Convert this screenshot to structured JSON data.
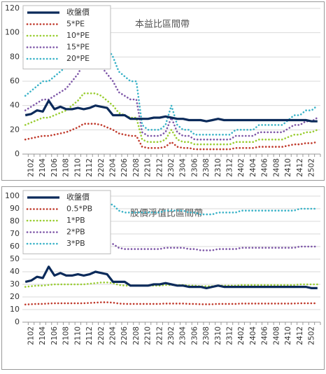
{
  "chart_data": [
    {
      "type": "line",
      "title": "本益比區間帶",
      "categories": [
        null,
        "2102",
        null,
        "2104",
        null,
        "2106",
        null,
        "2108",
        null,
        "2110",
        null,
        "2112",
        null,
        "2202",
        null,
        "2204",
        null,
        "2206",
        null,
        "2208",
        null,
        "2210",
        null,
        "2212",
        null,
        "2302",
        null,
        "2304",
        null,
        "2306",
        null,
        "2308",
        null,
        "2310",
        null,
        "2312",
        null,
        "2402",
        null,
        "2404",
        null,
        "2406",
        null,
        "2408",
        null,
        "2410",
        null,
        "2412",
        null,
        "2502",
        null
      ],
      "ylim": [
        0,
        120
      ],
      "yticks": [
        0,
        20,
        40,
        60,
        80,
        100,
        120
      ],
      "grid": true,
      "series": [
        {
          "name": "收盤價",
          "color": "#0b2a5a",
          "style": "solid",
          "values": [
            32,
            33,
            36,
            35,
            44,
            37,
            39,
            37,
            37,
            38,
            37,
            38,
            40,
            39,
            38,
            32,
            32,
            32,
            29,
            29,
            29,
            29,
            30,
            30,
            31,
            30,
            29,
            29,
            28,
            28,
            28,
            27,
            28,
            29,
            28,
            28,
            28,
            28,
            28,
            28,
            28,
            28,
            28,
            28,
            28,
            28,
            28,
            28,
            28,
            27,
            27
          ]
        },
        {
          "name": "5*PE",
          "color": "#c0392b",
          "style": "dotted",
          "values": [
            12,
            13,
            14,
            15,
            15,
            16,
            17,
            18,
            20,
            22,
            25,
            25,
            25,
            24,
            22,
            20,
            17,
            16,
            15,
            15,
            6,
            5,
            5,
            5,
            6,
            10,
            6,
            5,
            5,
            4,
            4,
            4,
            4,
            4,
            4,
            4,
            5,
            5,
            5,
            5,
            6,
            6,
            6,
            6,
            6,
            7,
            8,
            8,
            9,
            9,
            10
          ]
        },
        {
          "name": "10*PE",
          "color": "#9acd32",
          "style": "dotted",
          "values": [
            24,
            26,
            28,
            30,
            30,
            32,
            34,
            36,
            40,
            44,
            50,
            50,
            50,
            48,
            44,
            40,
            34,
            32,
            30,
            30,
            12,
            10,
            10,
            10,
            12,
            20,
            12,
            10,
            10,
            8,
            8,
            8,
            8,
            8,
            8,
            8,
            10,
            10,
            10,
            10,
            12,
            12,
            12,
            12,
            12,
            14,
            16,
            16,
            18,
            18,
            20
          ]
        },
        {
          "name": "15*PE",
          "color": "#7e57a8",
          "style": "dotted",
          "values": [
            36,
            39,
            42,
            45,
            45,
            48,
            51,
            54,
            60,
            66,
            75,
            75,
            75,
            72,
            66,
            60,
            51,
            48,
            45,
            45,
            18,
            15,
            15,
            15,
            18,
            30,
            18,
            15,
            15,
            12,
            12,
            12,
            12,
            12,
            12,
            12,
            15,
            15,
            15,
            15,
            18,
            18,
            18,
            18,
            18,
            21,
            24,
            24,
            27,
            27,
            30
          ]
        },
        {
          "name": "20*PE",
          "color": "#3bb3c8",
          "style": "dotted",
          "values": [
            48,
            52,
            56,
            60,
            60,
            64,
            68,
            72,
            80,
            88,
            100,
            100,
            100,
            96,
            88,
            80,
            68,
            64,
            60,
            60,
            24,
            20,
            20,
            20,
            24,
            40,
            24,
            20,
            20,
            16,
            16,
            16,
            16,
            16,
            16,
            16,
            20,
            20,
            20,
            20,
            24,
            24,
            24,
            24,
            24,
            28,
            32,
            32,
            36,
            36,
            40
          ]
        }
      ]
    },
    {
      "type": "line",
      "title": "股價淨值比區間帶",
      "categories": [
        null,
        "2102",
        null,
        "2104",
        null,
        "2106",
        null,
        "2108",
        null,
        "2110",
        null,
        "2112",
        null,
        "2202",
        null,
        "2204",
        null,
        "2206",
        null,
        "2208",
        null,
        "2210",
        null,
        "2212",
        null,
        "2302",
        null,
        "2304",
        null,
        "2306",
        null,
        "2308",
        null,
        "2310",
        null,
        "2312",
        null,
        "2402",
        null,
        "2404",
        null,
        "2406",
        null,
        "2408",
        null,
        "2410",
        null,
        "2412",
        null,
        "2502",
        null
      ],
      "ylim": [
        0,
        100
      ],
      "yticks": [
        0,
        10,
        20,
        30,
        40,
        50,
        60,
        70,
        80,
        90,
        100
      ],
      "grid": true,
      "series": [
        {
          "name": "收盤價",
          "color": "#0b2a5a",
          "style": "solid",
          "values": [
            32,
            33,
            36,
            35,
            44,
            37,
            39,
            37,
            37,
            38,
            37,
            38,
            40,
            39,
            38,
            32,
            32,
            32,
            29,
            29,
            29,
            29,
            30,
            30,
            31,
            30,
            29,
            29,
            28,
            28,
            28,
            27,
            28,
            29,
            28,
            28,
            28,
            28,
            28,
            28,
            28,
            28,
            28,
            28,
            28,
            28,
            28,
            28,
            28,
            27,
            27
          ]
        },
        {
          "name": "0.5*PB",
          "color": "#c0392b",
          "style": "dotted",
          "values": [
            14,
            14.25,
            14.5,
            14.5,
            14.75,
            15,
            15,
            15,
            15,
            15,
            15,
            15.25,
            15.5,
            15.75,
            15.75,
            15.5,
            14.75,
            14.5,
            14.5,
            14.5,
            14.5,
            14.5,
            14.5,
            14.5,
            14.75,
            14.75,
            14.75,
            14.75,
            14.5,
            14.5,
            14.25,
            14.25,
            14.25,
            14.5,
            14.5,
            14.5,
            14.5,
            14.75,
            14.75,
            14.75,
            14.75,
            14.75,
            14.75,
            14.75,
            14.75,
            14.75,
            14.75,
            15,
            15,
            15,
            15
          ]
        },
        {
          "name": "1*PB",
          "color": "#9acd32",
          "style": "dotted",
          "values": [
            28,
            28.5,
            29,
            29,
            29.5,
            30,
            30,
            30,
            30,
            30,
            30,
            30.5,
            31,
            31.5,
            31.5,
            31,
            29.5,
            29,
            29,
            29,
            29,
            29,
            29,
            29,
            29.5,
            29.5,
            29.5,
            29.5,
            29,
            29,
            28.5,
            28.5,
            28.5,
            29,
            29,
            29,
            29,
            29.5,
            29.5,
            29.5,
            29.5,
            29.5,
            29.5,
            29.5,
            29.5,
            29.5,
            29.5,
            30,
            30,
            30,
            30
          ]
        },
        {
          "name": "2*PB",
          "color": "#7e57a8",
          "style": "dotted",
          "values": [
            56,
            57,
            58,
            58,
            59,
            60,
            60,
            60,
            60,
            60,
            60,
            61,
            62,
            63,
            63,
            62,
            59,
            58,
            58,
            58,
            58,
            58,
            58,
            58,
            59,
            59,
            59,
            59,
            58,
            58,
            57,
            57,
            57,
            58,
            58,
            58,
            58,
            59,
            59,
            59,
            59,
            59,
            59,
            59,
            59,
            59,
            59,
            60,
            60,
            60,
            60
          ]
        },
        {
          "name": "3*PB",
          "color": "#3bb3c8",
          "style": "dotted",
          "values": [
            84,
            85.5,
            87,
            87,
            88.5,
            90,
            90,
            90,
            90,
            90,
            90,
            91.5,
            93,
            94.5,
            94.5,
            93,
            88.5,
            87,
            87,
            87,
            87,
            87,
            87,
            87,
            88.5,
            88.5,
            88.5,
            88.5,
            87,
            87,
            85.5,
            85.5,
            85.5,
            87,
            87,
            87,
            87,
            88.5,
            88.5,
            88.5,
            88.5,
            88.5,
            88.5,
            88.5,
            88.5,
            88.5,
            88.5,
            90,
            90,
            90,
            90
          ]
        }
      ]
    }
  ]
}
